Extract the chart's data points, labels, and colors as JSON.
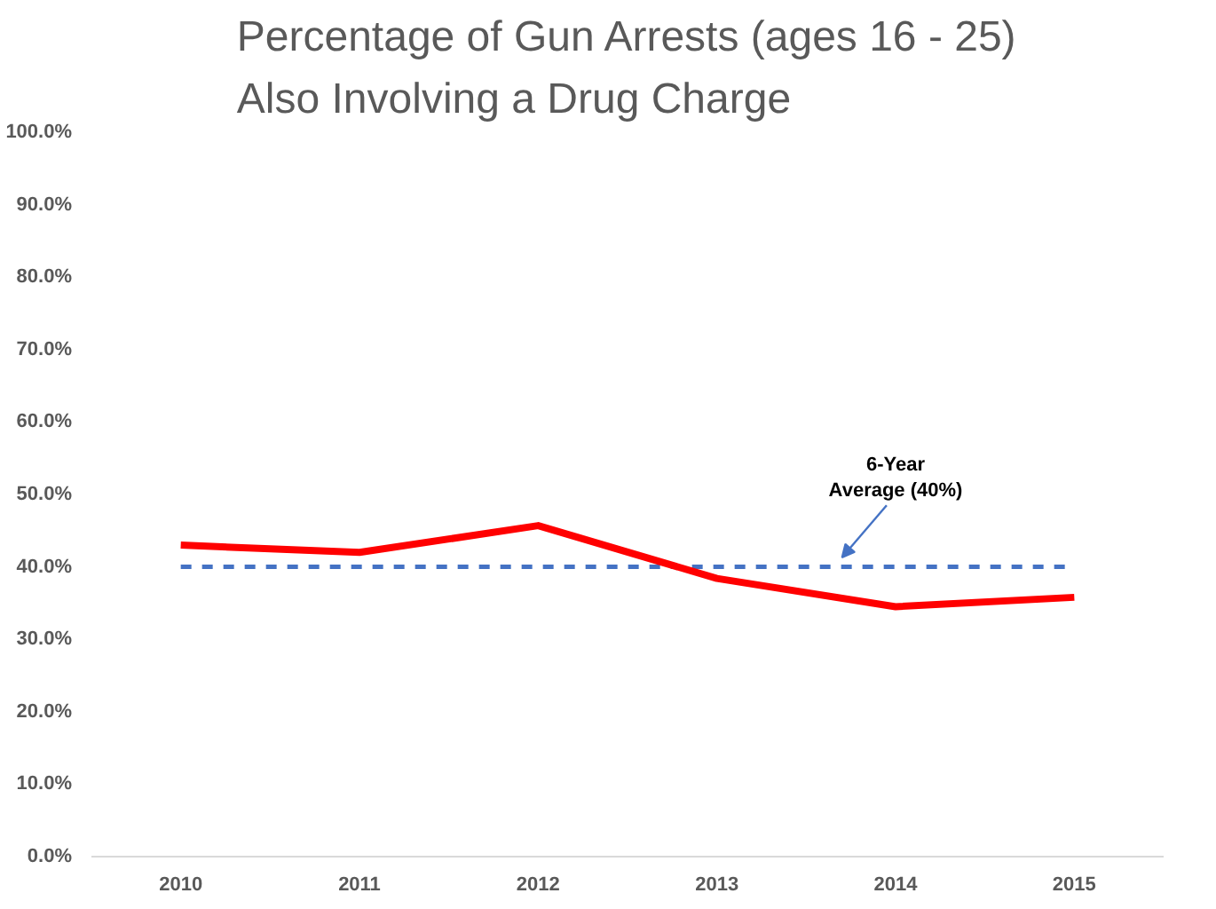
{
  "chart_data": {
    "type": "line",
    "title": "Percentage of Gun Arrests (ages 16 - 25)\nAlso Involving a Drug Charge",
    "categories": [
      "2010",
      "2011",
      "2012",
      "2013",
      "2014",
      "2015"
    ],
    "series": [
      {
        "color": "#ff0000",
        "values": [
          43.0,
          42.0,
          45.7,
          38.4,
          34.5,
          35.8
        ]
      }
    ],
    "ylim": [
      0,
      100
    ],
    "yticks": [
      {
        "value": 0,
        "label": "0.0%"
      },
      {
        "value": 10,
        "label": "10.0%"
      },
      {
        "value": 20,
        "label": "20.0%"
      },
      {
        "value": 30,
        "label": "30.0%"
      },
      {
        "value": 40,
        "label": "40.0%"
      },
      {
        "value": 50,
        "label": "50.0%"
      },
      {
        "value": 60,
        "label": "60.0%"
      },
      {
        "value": 70,
        "label": "70.0%"
      },
      {
        "value": 80,
        "label": "80.0%"
      },
      {
        "value": 90,
        "label": "90.0%"
      },
      {
        "value": 100,
        "label": "100.0%"
      }
    ],
    "ref_lines": [
      {
        "axis": "y",
        "value": 40,
        "label": "6-Year\nAverage (40%)",
        "color": "#4472c4",
        "line_style": "dashed"
      }
    ],
    "grid": false,
    "marker": "none",
    "line_style": "solid"
  }
}
